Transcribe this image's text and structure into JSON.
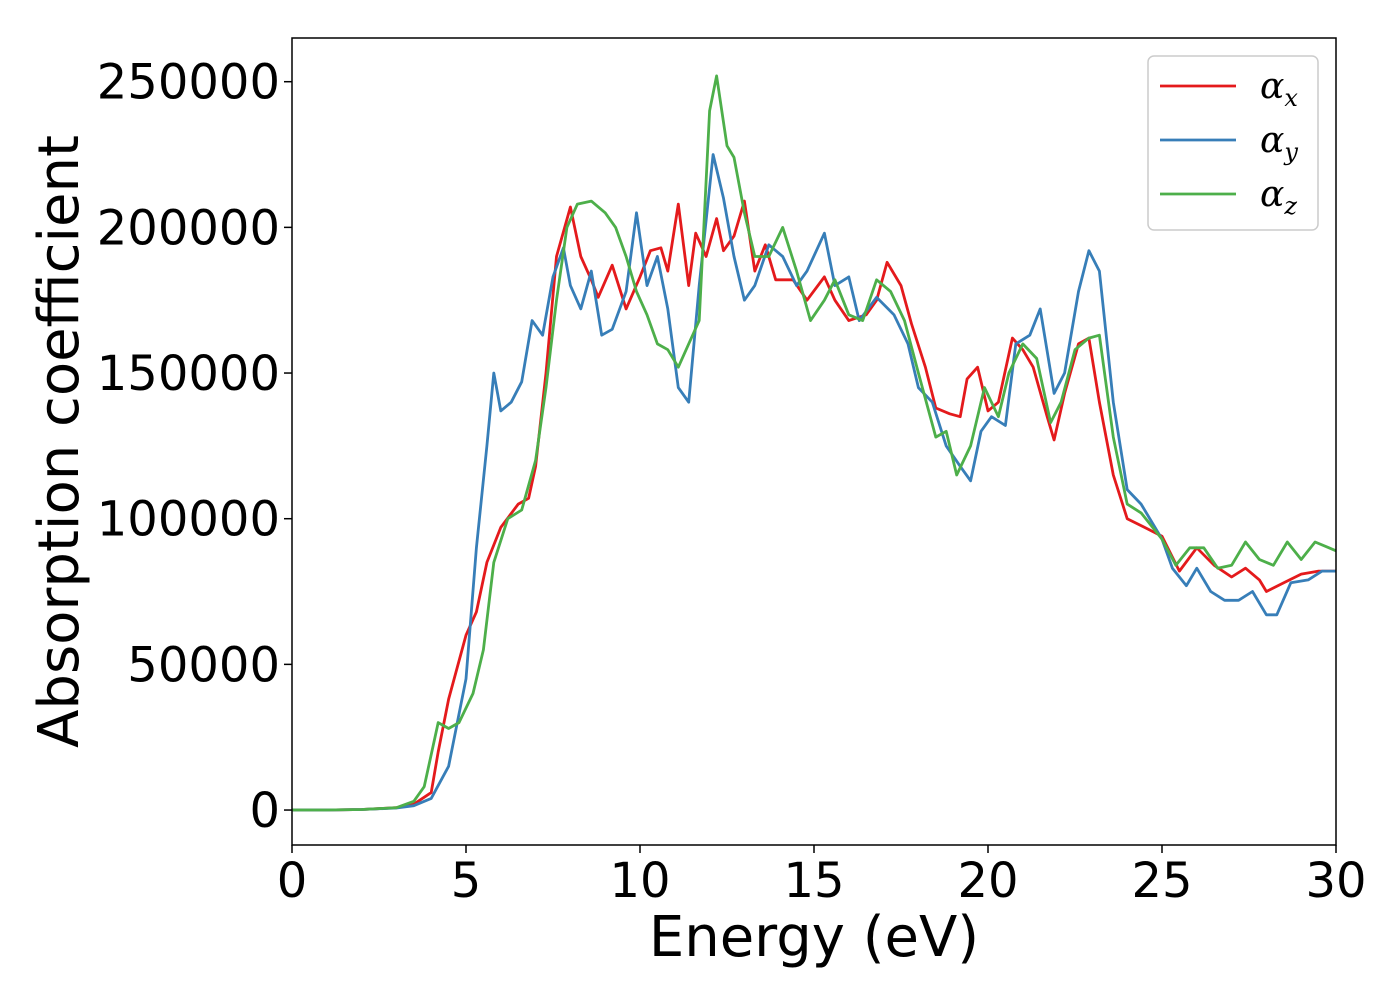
{
  "chart_data": {
    "type": "line",
    "title": "",
    "xlabel": "Energy (eV)",
    "ylabel": "Absorption coefficient",
    "xlim": [
      0,
      30
    ],
    "ylim": [
      -12000,
      265000
    ],
    "xticks": [
      0,
      5,
      10,
      15,
      20,
      25,
      30
    ],
    "yticks": [
      0,
      50000,
      100000,
      150000,
      200000,
      250000
    ],
    "grid": false,
    "legend_position": "top-right",
    "series": [
      {
        "name": "α",
        "subscript": "x",
        "color": "#e41a1c",
        "points": [
          [
            0,
            0
          ],
          [
            1,
            0
          ],
          [
            2,
            200
          ],
          [
            3,
            800
          ],
          [
            3.5,
            2000
          ],
          [
            4,
            6000
          ],
          [
            4.2,
            20000
          ],
          [
            4.5,
            38000
          ],
          [
            5,
            60000
          ],
          [
            5.3,
            68000
          ],
          [
            5.6,
            85000
          ],
          [
            6,
            97000
          ],
          [
            6.5,
            105000
          ],
          [
            6.8,
            107000
          ],
          [
            7,
            118000
          ],
          [
            7.3,
            150000
          ],
          [
            7.6,
            190000
          ],
          [
            8,
            207000
          ],
          [
            8.3,
            190000
          ],
          [
            8.6,
            182000
          ],
          [
            8.8,
            176000
          ],
          [
            9.2,
            187000
          ],
          [
            9.6,
            172000
          ],
          [
            10,
            183000
          ],
          [
            10.3,
            192000
          ],
          [
            10.6,
            193000
          ],
          [
            10.8,
            185000
          ],
          [
            11.1,
            208000
          ],
          [
            11.4,
            180000
          ],
          [
            11.6,
            198000
          ],
          [
            11.9,
            190000
          ],
          [
            12.2,
            203000
          ],
          [
            12.4,
            192000
          ],
          [
            12.7,
            197000
          ],
          [
            13,
            209000
          ],
          [
            13.3,
            185000
          ],
          [
            13.6,
            194000
          ],
          [
            13.9,
            182000
          ],
          [
            14.4,
            182000
          ],
          [
            14.8,
            175000
          ],
          [
            15.3,
            183000
          ],
          [
            15.6,
            175000
          ],
          [
            16,
            168000
          ],
          [
            16.5,
            170000
          ],
          [
            16.8,
            175000
          ],
          [
            17.1,
            188000
          ],
          [
            17.5,
            180000
          ],
          [
            17.8,
            167000
          ],
          [
            18.2,
            152000
          ],
          [
            18.5,
            138000
          ],
          [
            18.9,
            136000
          ],
          [
            19.2,
            135000
          ],
          [
            19.4,
            148000
          ],
          [
            19.7,
            152000
          ],
          [
            20,
            137000
          ],
          [
            20.3,
            140000
          ],
          [
            20.7,
            162000
          ],
          [
            21,
            158000
          ],
          [
            21.3,
            152000
          ],
          [
            21.7,
            135000
          ],
          [
            21.9,
            127000
          ],
          [
            22.2,
            143000
          ],
          [
            22.6,
            160000
          ],
          [
            22.9,
            162000
          ],
          [
            23.2,
            140000
          ],
          [
            23.6,
            115000
          ],
          [
            24,
            100000
          ],
          [
            24.5,
            97000
          ],
          [
            25,
            94000
          ],
          [
            25.5,
            82000
          ],
          [
            26,
            90000
          ],
          [
            26.5,
            84000
          ],
          [
            27,
            80000
          ],
          [
            27.4,
            83000
          ],
          [
            27.8,
            79000
          ],
          [
            28,
            75000
          ],
          [
            28.5,
            78000
          ],
          [
            29,
            81000
          ],
          [
            29.5,
            82000
          ],
          [
            30,
            82000
          ]
        ]
      },
      {
        "name": "α",
        "subscript": "y",
        "color": "#377eb8",
        "points": [
          [
            0,
            0
          ],
          [
            1,
            0
          ],
          [
            2,
            200
          ],
          [
            3,
            700
          ],
          [
            3.5,
            1500
          ],
          [
            4,
            4000
          ],
          [
            4.5,
            15000
          ],
          [
            5,
            45000
          ],
          [
            5.3,
            90000
          ],
          [
            5.6,
            125000
          ],
          [
            5.8,
            150000
          ],
          [
            6,
            137000
          ],
          [
            6.3,
            140000
          ],
          [
            6.6,
            147000
          ],
          [
            6.9,
            168000
          ],
          [
            7.2,
            163000
          ],
          [
            7.5,
            183000
          ],
          [
            7.8,
            193000
          ],
          [
            8,
            180000
          ],
          [
            8.3,
            172000
          ],
          [
            8.6,
            185000
          ],
          [
            8.9,
            163000
          ],
          [
            9.2,
            165000
          ],
          [
            9.6,
            178000
          ],
          [
            9.9,
            205000
          ],
          [
            10.2,
            180000
          ],
          [
            10.5,
            190000
          ],
          [
            10.8,
            172000
          ],
          [
            11.1,
            145000
          ],
          [
            11.4,
            140000
          ],
          [
            11.7,
            180000
          ],
          [
            12.1,
            225000
          ],
          [
            12.4,
            210000
          ],
          [
            12.7,
            190000
          ],
          [
            13,
            175000
          ],
          [
            13.3,
            180000
          ],
          [
            13.7,
            194000
          ],
          [
            14.1,
            190000
          ],
          [
            14.5,
            180000
          ],
          [
            14.8,
            185000
          ],
          [
            15.3,
            198000
          ],
          [
            15.6,
            180000
          ],
          [
            16,
            183000
          ],
          [
            16.3,
            168000
          ],
          [
            16.8,
            176000
          ],
          [
            17.3,
            170000
          ],
          [
            17.7,
            160000
          ],
          [
            18,
            145000
          ],
          [
            18.4,
            140000
          ],
          [
            18.8,
            125000
          ],
          [
            19.2,
            118000
          ],
          [
            19.5,
            113000
          ],
          [
            19.8,
            130000
          ],
          [
            20.1,
            135000
          ],
          [
            20.5,
            132000
          ],
          [
            20.8,
            160000
          ],
          [
            21.2,
            163000
          ],
          [
            21.5,
            172000
          ],
          [
            21.9,
            143000
          ],
          [
            22.2,
            150000
          ],
          [
            22.6,
            178000
          ],
          [
            22.9,
            192000
          ],
          [
            23.2,
            185000
          ],
          [
            23.6,
            140000
          ],
          [
            24,
            110000
          ],
          [
            24.4,
            105000
          ],
          [
            25,
            93000
          ],
          [
            25.3,
            83000
          ],
          [
            25.7,
            77000
          ],
          [
            26,
            83000
          ],
          [
            26.4,
            75000
          ],
          [
            26.8,
            72000
          ],
          [
            27.2,
            72000
          ],
          [
            27.6,
            75000
          ],
          [
            28,
            67000
          ],
          [
            28.3,
            67000
          ],
          [
            28.7,
            78000
          ],
          [
            29.2,
            79000
          ],
          [
            29.6,
            82000
          ],
          [
            30,
            82000
          ]
        ]
      },
      {
        "name": "α",
        "subscript": "z",
        "color": "#4daf4a",
        "points": [
          [
            0,
            0
          ],
          [
            1,
            0
          ],
          [
            2,
            200
          ],
          [
            3,
            800
          ],
          [
            3.5,
            3000
          ],
          [
            3.8,
            8000
          ],
          [
            4.2,
            30000
          ],
          [
            4.5,
            28000
          ],
          [
            4.8,
            30000
          ],
          [
            5.2,
            40000
          ],
          [
            5.5,
            55000
          ],
          [
            5.8,
            85000
          ],
          [
            6.2,
            100000
          ],
          [
            6.6,
            103000
          ],
          [
            7,
            120000
          ],
          [
            7.3,
            145000
          ],
          [
            7.6,
            175000
          ],
          [
            7.9,
            200000
          ],
          [
            8.2,
            208000
          ],
          [
            8.6,
            209000
          ],
          [
            9,
            205000
          ],
          [
            9.3,
            200000
          ],
          [
            9.6,
            190000
          ],
          [
            9.9,
            178000
          ],
          [
            10.2,
            170000
          ],
          [
            10.5,
            160000
          ],
          [
            10.8,
            158000
          ],
          [
            11.1,
            152000
          ],
          [
            11.4,
            160000
          ],
          [
            11.7,
            168000
          ],
          [
            12,
            240000
          ],
          [
            12.2,
            252000
          ],
          [
            12.5,
            228000
          ],
          [
            12.7,
            224000
          ],
          [
            13,
            205000
          ],
          [
            13.3,
            190000
          ],
          [
            13.7,
            190000
          ],
          [
            14.1,
            200000
          ],
          [
            14.5,
            185000
          ],
          [
            14.9,
            168000
          ],
          [
            15.3,
            175000
          ],
          [
            15.6,
            182000
          ],
          [
            16,
            170000
          ],
          [
            16.4,
            168000
          ],
          [
            16.8,
            182000
          ],
          [
            17.2,
            178000
          ],
          [
            17.6,
            168000
          ],
          [
            18,
            150000
          ],
          [
            18.5,
            128000
          ],
          [
            18.8,
            130000
          ],
          [
            19.1,
            115000
          ],
          [
            19.5,
            125000
          ],
          [
            19.9,
            145000
          ],
          [
            20.3,
            135000
          ],
          [
            20.6,
            150000
          ],
          [
            21,
            160000
          ],
          [
            21.4,
            155000
          ],
          [
            21.8,
            133000
          ],
          [
            22.1,
            140000
          ],
          [
            22.5,
            158000
          ],
          [
            22.9,
            162000
          ],
          [
            23.2,
            163000
          ],
          [
            23.6,
            128000
          ],
          [
            24,
            105000
          ],
          [
            24.4,
            102000
          ],
          [
            25,
            93000
          ],
          [
            25.4,
            84000
          ],
          [
            25.8,
            90000
          ],
          [
            26.2,
            90000
          ],
          [
            26.6,
            83000
          ],
          [
            27,
            84000
          ],
          [
            27.4,
            92000
          ],
          [
            27.8,
            86000
          ],
          [
            28.2,
            84000
          ],
          [
            28.6,
            92000
          ],
          [
            29,
            86000
          ],
          [
            29.4,
            92000
          ],
          [
            29.8,
            90000
          ],
          [
            30,
            89000
          ]
        ]
      }
    ]
  }
}
